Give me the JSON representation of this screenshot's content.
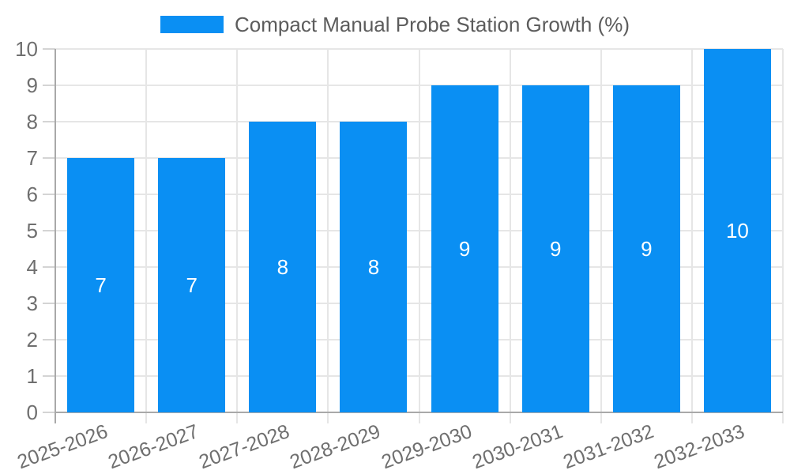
{
  "chart_data": {
    "type": "bar",
    "title": "Compact Manual Probe Station Growth (%)",
    "categories": [
      "2025-2026",
      "2026-2027",
      "2027-2028",
      "2028-2029",
      "2029-2030",
      "2030-2031",
      "2031-2032",
      "2032-2033"
    ],
    "values": [
      7,
      7,
      8,
      8,
      9,
      9,
      9,
      10
    ],
    "series_name": "Compact Manual Probe Station Growth (%)",
    "xlabel": "",
    "ylabel": "",
    "ylim": [
      0,
      10
    ],
    "yticks": [
      0,
      1,
      2,
      3,
      4,
      5,
      6,
      7,
      8,
      9,
      10
    ],
    "grid": true,
    "legend_position": "top",
    "value_labels_inside_bars": true,
    "x_labels_rotated": true
  },
  "legend": {
    "label": "Compact Manual Probe Station Growth (%)",
    "swatch_color": "#0a8ff3"
  },
  "colors": {
    "background": "#ffffff",
    "bar": "#0a8ff3",
    "grid": "#e6e6e6",
    "axis": "#a9a9a9",
    "tick_mark": "#d4d4d4",
    "tick_label": "#6f6f6f",
    "legend_text": "#5c5c5c",
    "value_label": "#ffffff"
  }
}
